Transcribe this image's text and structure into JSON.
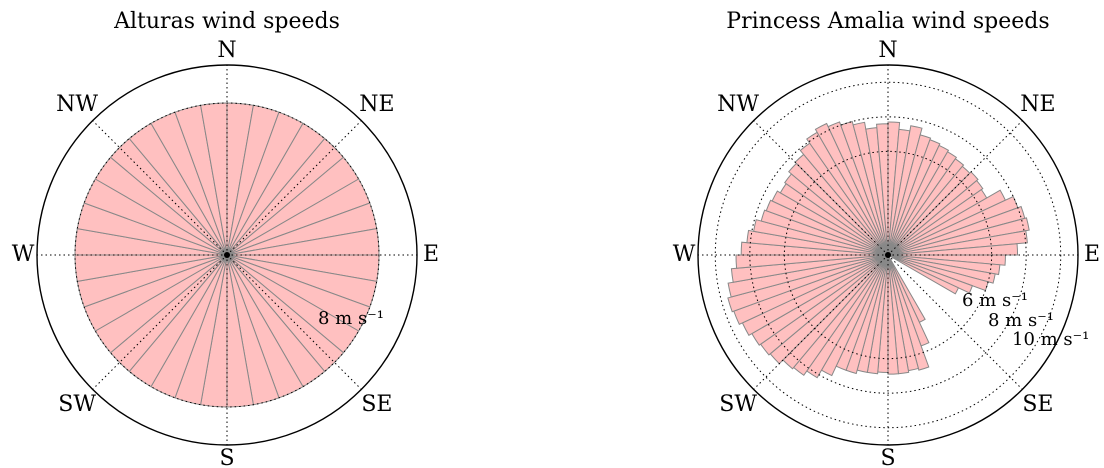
{
  "colors": {
    "wedge_fill": "#ffc0c0",
    "wedge_edge": "#888888",
    "axis": "#000000"
  },
  "chart_data": [
    {
      "type": "polar-bar",
      "title": "Alturas wind speeds",
      "direction_labels": [
        "N",
        "NE",
        "E",
        "SE",
        "S",
        "SW",
        "W",
        "NW"
      ],
      "bin_count": 36,
      "values": [
        8,
        8,
        8,
        8,
        8,
        8,
        8,
        8,
        8,
        8,
        8,
        8,
        8,
        8,
        8,
        8,
        8,
        8,
        8,
        8,
        8,
        8,
        8,
        8,
        8,
        8,
        8,
        8,
        8,
        8,
        8,
        8,
        8,
        8,
        8,
        8
      ],
      "rlim": [
        0,
        10
      ],
      "rings": [
        8
      ],
      "ring_labels": [
        "8 m s⁻¹"
      ],
      "unit": "m s⁻¹",
      "grid": true
    },
    {
      "type": "polar-bar",
      "title": "Princess Amalia wind speeds",
      "direction_labels": [
        "N",
        "NE",
        "E",
        "SE",
        "S",
        "SW",
        "W",
        "NW"
      ],
      "bin_count": 72,
      "values": [
        7.7,
        7.3,
        7.6,
        7.2,
        7.1,
        7.0,
        6.9,
        6.8,
        6.7,
        6.8,
        6.7,
        6.6,
        7.5,
        8.0,
        8.2,
        8.3,
        8.1,
        7.5,
        6.8,
        6.5,
        6.3,
        6.0,
        5.2,
        4.5,
        0,
        0,
        0,
        0,
        0,
        0,
        4.3,
        5.6,
        6.9,
        6.8,
        6.9,
        6.9,
        6.8,
        6.9,
        6.9,
        7.1,
        7.1,
        7.7,
        8.2,
        8.5,
        8.6,
        8.9,
        9.0,
        9.1,
        9.3,
        9.5,
        9.6,
        9.4,
        9.1,
        8.8,
        8.5,
        8.2,
        7.9,
        7.6,
        7.5,
        7.4,
        7.2,
        7.3,
        7.5,
        7.6,
        7.9,
        8.2,
        8.4,
        8.2,
        8.0,
        7.8,
        7.4,
        7.6
      ],
      "rlim": [
        0,
        11
      ],
      "rings": [
        6,
        8,
        10
      ],
      "ring_labels": [
        "6 m s⁻¹",
        "8 m s⁻¹",
        "10 m s⁻¹"
      ],
      "unit": "m s⁻¹",
      "grid": true
    }
  ]
}
